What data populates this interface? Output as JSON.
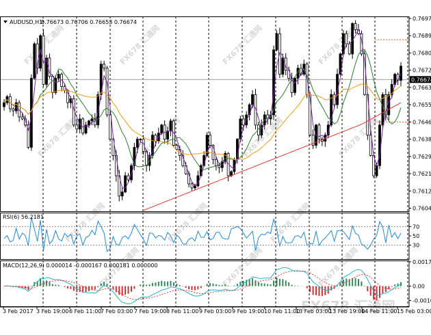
{
  "chart_data": [
    {
      "type": "candlestick",
      "symbol_label": "AUDUSD,H1",
      "ohlc_label": "0.76673 0.76706 0.76653 0.76674",
      "ylim": [
        0.76025,
        0.76985
      ],
      "yticks": [
        "0.76975",
        "0.76890",
        "0.76805",
        "0.76720",
        "0.76635",
        "0.76550",
        "0.76465",
        "0.76380",
        "0.76295",
        "0.76210",
        "0.76125",
        "0.76040"
      ],
      "current_price": "0.76674",
      "xticks": [
        "3 Feb 2017",
        "3 Feb 19:00",
        "6 Feb 11:00",
        "7 Feb 03:00",
        "7 Feb 19:00",
        "8 Feb 11:00",
        "9 Feb 03:00",
        "9 Feb 19:00",
        "10 Feb 11:00",
        "13 Feb 03:00",
        "13 Feb 19:00",
        "14 Feb 11:00",
        "15 Feb 03:00"
      ],
      "close_path": [
        0.7656,
        0.7659,
        0.7653,
        0.7652,
        0.7656,
        0.7649,
        0.7648,
        0.7645,
        0.7634,
        0.7668,
        0.7685,
        0.7673,
        0.7689,
        0.7665,
        0.7678,
        0.7669,
        0.7661,
        0.7668,
        0.767,
        0.7664,
        0.7662,
        0.7656,
        0.7658,
        0.7645,
        0.7643,
        0.7648,
        0.7641,
        0.7645,
        0.7647,
        0.7648,
        0.7645,
        0.766,
        0.7675,
        0.7673,
        0.765,
        0.7638,
        0.763,
        0.762,
        0.761,
        0.7612,
        0.762,
        0.7618,
        0.7625,
        0.7634,
        0.7638,
        0.7638,
        0.7632,
        0.7625,
        0.763,
        0.764,
        0.7637,
        0.7641,
        0.7645,
        0.7638,
        0.7642,
        0.7647,
        0.7635,
        0.7633,
        0.763,
        0.7625,
        0.7621,
        0.7616,
        0.7614,
        0.7615,
        0.762,
        0.7625,
        0.763,
        0.764,
        0.7635,
        0.7628,
        0.7625,
        0.7624,
        0.7627,
        0.7631,
        0.762,
        0.7622,
        0.7628,
        0.7638,
        0.7648,
        0.7645,
        0.765,
        0.7655,
        0.766,
        0.7645,
        0.764,
        0.7645,
        0.765,
        0.7648,
        0.765,
        0.7682,
        0.769,
        0.767,
        0.7678,
        0.7672,
        0.7668,
        0.7661,
        0.7668,
        0.7673,
        0.767,
        0.7675,
        0.766,
        0.764,
        0.7635,
        0.7645,
        0.7638,
        0.7637,
        0.764,
        0.7645,
        0.766,
        0.7655,
        0.767,
        0.768,
        0.769,
        0.7685,
        0.768,
        0.7695,
        0.7692,
        0.769,
        0.768,
        0.766,
        0.764,
        0.763,
        0.762,
        0.7625,
        0.7645,
        0.766,
        0.765,
        0.766,
        0.7665,
        0.767,
        0.7667,
        0.7674
      ],
      "horizontal_lines": [
        0.76975,
        0.7687,
        0.76465
      ],
      "moving_averages": [
        "purple",
        "green",
        "orange",
        "red"
      ]
    },
    {
      "type": "line",
      "title": "RSI(6) 56.2181",
      "ylim": [
        0,
        100
      ],
      "yticks": [
        "70",
        "50",
        "30"
      ],
      "levels": [
        70,
        30
      ],
      "value": 56.2181
    },
    {
      "type": "histogram+line",
      "title": "MACD(12,26,9) 0.000014 -0.000167 0.000181 0.000000",
      "yticks": [
        "0.001754",
        "0.00",
        "-0.001035"
      ],
      "ylim": [
        -0.00145,
        0.00185
      ]
    }
  ],
  "colors": {
    "bull": "#000000",
    "bear": "#ffffff",
    "ma_fast": "#7b1fa2",
    "ma_mid": "#2e7d32",
    "ma_slow": "#f39c12",
    "ma_long": "#e53935",
    "rsi": "#1e88e5",
    "macd_pos": "#2e8b57",
    "macd_neg": "#d32f2f",
    "signal": "#e53935",
    "macd_line": "#1fb5c8"
  },
  "watermark": "FX678 汇通网"
}
